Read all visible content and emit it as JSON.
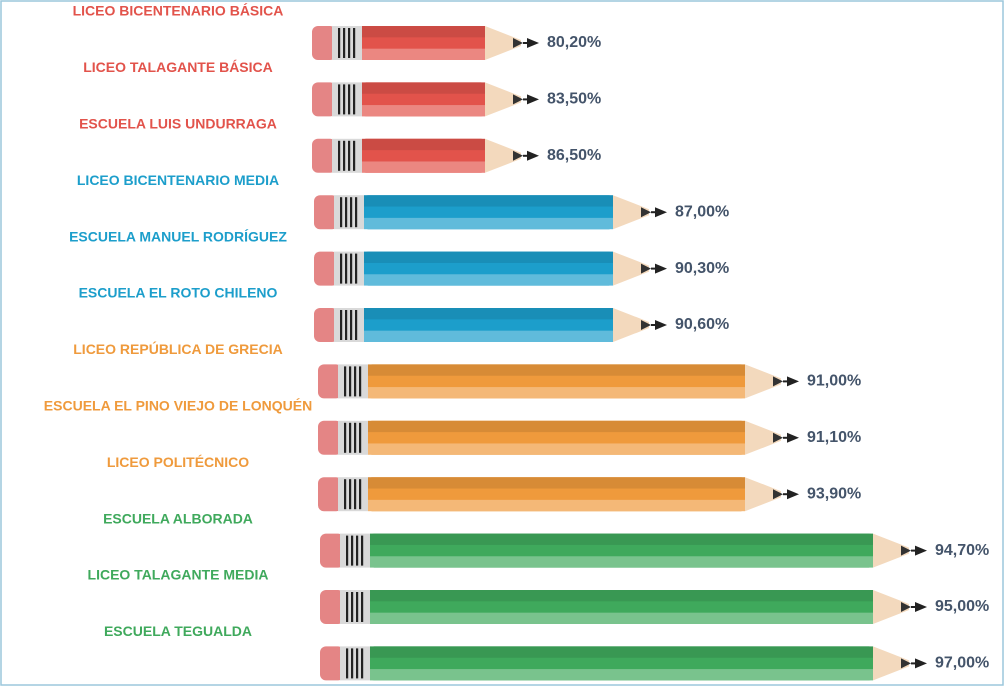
{
  "groups": [
    {
      "color": "#e2534b",
      "items": [
        {
          "label": "LICEO BICENTENARIO BÁSICA",
          "value": "80,20%"
        },
        {
          "label": "LICEO TALAGANTE BÁSICA",
          "value": "83,50%"
        },
        {
          "label": "ESCUELA LUIS UNDURRAGA",
          "value": "86,50%"
        }
      ]
    },
    {
      "color": "#1c9ecb",
      "items": [
        {
          "label": "LICEO BICENTENARIO MEDIA",
          "value": "87,00%"
        },
        {
          "label": "ESCUELA MANUEL RODRÍGUEZ",
          "value": "90,30%"
        },
        {
          "label": "ESCUELA EL ROTO CHILENO",
          "value": "90,60%"
        }
      ]
    },
    {
      "color": "#ef9a3c",
      "items": [
        {
          "label": "LICEO REPÚBLICA DE GRECIA",
          "value": "91,00%"
        },
        {
          "label": "ESCUELA EL PINO VIEJO DE LONQUÉN",
          "value": "91,10%"
        },
        {
          "label": "LICEO POLITÉCNICO",
          "value": "93,90%"
        }
      ]
    },
    {
      "color": "#3fa95c",
      "items": [
        {
          "label": "ESCUELA ALBORADA",
          "value": "94,70%"
        },
        {
          "label": "LICEO TALAGANTE MEDIA",
          "value": "95,00%"
        },
        {
          "label": "ESCUELA TEGUALDA",
          "value": "97,00%"
        }
      ]
    }
  ]
}
